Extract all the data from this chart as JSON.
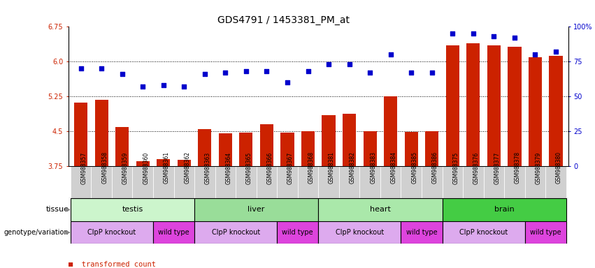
{
  "title": "GDS4791 / 1453381_PM_at",
  "samples": [
    "GSM988357",
    "GSM988358",
    "GSM988359",
    "GSM988360",
    "GSM988361",
    "GSM988362",
    "GSM988363",
    "GSM988364",
    "GSM988365",
    "GSM988366",
    "GSM988367",
    "GSM988368",
    "GSM988381",
    "GSM988382",
    "GSM988383",
    "GSM988384",
    "GSM988385",
    "GSM988386",
    "GSM988375",
    "GSM988376",
    "GSM988377",
    "GSM988378",
    "GSM988379",
    "GSM988380"
  ],
  "transformed_count": [
    5.12,
    5.18,
    4.6,
    3.85,
    3.9,
    3.88,
    4.55,
    4.45,
    4.47,
    4.65,
    4.47,
    4.5,
    4.85,
    4.88,
    4.5,
    5.26,
    4.48,
    4.5,
    6.35,
    6.4,
    6.35,
    6.32,
    6.1,
    6.12
  ],
  "percentile_rank": [
    70,
    70,
    66,
    57,
    58,
    57,
    66,
    67,
    68,
    68,
    60,
    68,
    73,
    73,
    67,
    80,
    67,
    67,
    95,
    95,
    93,
    92,
    80,
    82
  ],
  "tissues": [
    {
      "name": "testis",
      "start": 0,
      "end": 6,
      "color": "#ccf5cc"
    },
    {
      "name": "liver",
      "start": 6,
      "end": 12,
      "color": "#99dd99"
    },
    {
      "name": "heart",
      "start": 12,
      "end": 18,
      "color": "#aae8aa"
    },
    {
      "name": "brain",
      "start": 18,
      "end": 24,
      "color": "#44cc44"
    }
  ],
  "genotypes": [
    {
      "name": "ClpP knockout",
      "start": 0,
      "end": 4,
      "color": "#ddbbee"
    },
    {
      "name": "wild type",
      "start": 4,
      "end": 6,
      "color": "#ee55ee"
    },
    {
      "name": "ClpP knockout",
      "start": 6,
      "end": 10,
      "color": "#ddbbee"
    },
    {
      "name": "wild type",
      "start": 10,
      "end": 12,
      "color": "#ee55ee"
    },
    {
      "name": "ClpP knockout",
      "start": 12,
      "end": 16,
      "color": "#ddbbee"
    },
    {
      "name": "wild type",
      "start": 16,
      "end": 18,
      "color": "#ee55ee"
    },
    {
      "name": "ClpP knockout",
      "start": 18,
      "end": 22,
      "color": "#ddbbee"
    },
    {
      "name": "wild type",
      "start": 22,
      "end": 24,
      "color": "#ee55ee"
    }
  ],
  "ylim_left": [
    3.75,
    6.75
  ],
  "ylim_right": [
    0,
    100
  ],
  "yticks_left": [
    3.75,
    4.5,
    5.25,
    6.0,
    6.75
  ],
  "yticks_right": [
    0,
    25,
    50,
    75,
    100
  ],
  "bar_color": "#cc2200",
  "dot_color": "#0000cc",
  "grid_lines": [
    4.5,
    5.25,
    6.0
  ],
  "title_fontsize": 10,
  "tick_fontsize": 7,
  "label_fontsize": 8,
  "xticklabel_bg": "#cccccc"
}
